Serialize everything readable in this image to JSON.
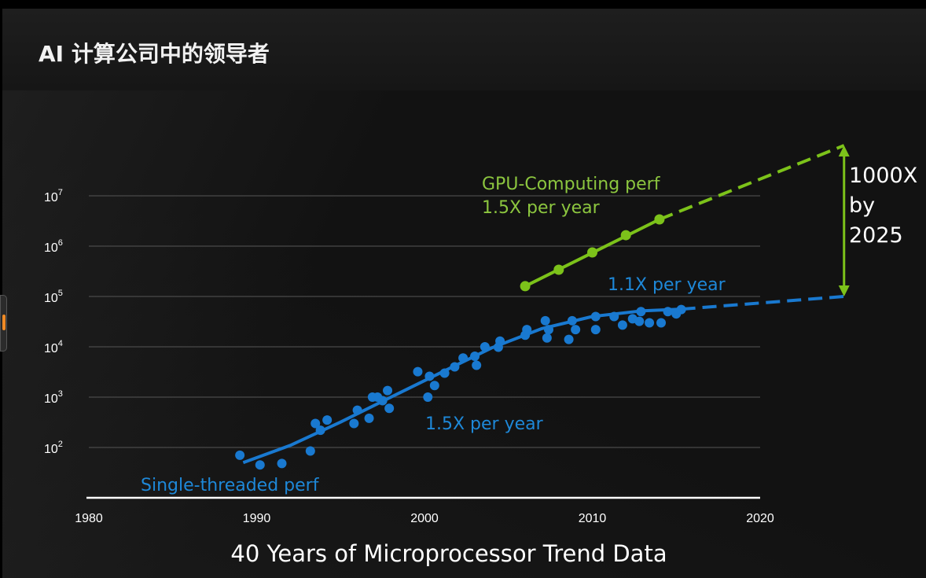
{
  "header": {
    "title": "AI 计算公司中的领导者"
  },
  "chart_data": {
    "type": "scatter",
    "title": "40 Years of Microprocessor Trend Data",
    "xlabel": "",
    "ylabel": "",
    "xlim": [
      1980,
      2020
    ],
    "ylim": [
      10,
      10000000
    ],
    "y_scale": "log",
    "grid": true,
    "x_ticks": [
      "1980",
      "1990",
      "2000",
      "2010",
      "2020"
    ],
    "y_ticks": [
      {
        "base": "10",
        "exp": "2"
      },
      {
        "base": "10",
        "exp": "3"
      },
      {
        "base": "10",
        "exp": "4"
      },
      {
        "base": "10",
        "exp": "5"
      },
      {
        "base": "10",
        "exp": "6"
      },
      {
        "base": "10",
        "exp": "7"
      }
    ],
    "colors": {
      "gpu": "#7cc21a",
      "cpu": "#1979d0",
      "axis": "#ffffff",
      "grid": "#4a4a4a"
    },
    "series": [
      {
        "name": "Single-threaded perf",
        "points": [
          [
            1989,
            70
          ],
          [
            1990.2,
            45
          ],
          [
            1991.5,
            48
          ],
          [
            1993.2,
            85
          ],
          [
            1993.5,
            300
          ],
          [
            1993.8,
            220
          ],
          [
            1994.2,
            350
          ],
          [
            1995.8,
            300
          ],
          [
            1996,
            550
          ],
          [
            1996.7,
            380
          ],
          [
            1996.9,
            1000
          ],
          [
            1997.2,
            1000
          ],
          [
            1997.5,
            850
          ],
          [
            1997.8,
            1350
          ],
          [
            1997.9,
            600
          ],
          [
            1999.6,
            3200
          ],
          [
            2000.2,
            1000
          ],
          [
            2000.3,
            2600
          ],
          [
            2000.6,
            1700
          ],
          [
            2001.2,
            3000
          ],
          [
            2001.8,
            4000
          ],
          [
            2002.3,
            6000
          ],
          [
            2003,
            6500
          ],
          [
            2003.1,
            4300
          ],
          [
            2003.6,
            10000
          ],
          [
            2004.4,
            9800
          ],
          [
            2004.5,
            13000
          ],
          [
            2006,
            17000
          ],
          [
            2006.1,
            22000
          ],
          [
            2007.2,
            33000
          ],
          [
            2007.3,
            15000
          ],
          [
            2007.4,
            22000
          ],
          [
            2008.6,
            14000
          ],
          [
            2008.8,
            33000
          ],
          [
            2009,
            22000
          ],
          [
            2010.2,
            40000
          ],
          [
            2010.2,
            22000
          ],
          [
            2011.3,
            40000
          ],
          [
            2011.8,
            27000
          ],
          [
            2012.4,
            36000
          ],
          [
            2012.8,
            32000
          ],
          [
            2012.9,
            50000
          ],
          [
            2013.4,
            30000
          ],
          [
            2014.1,
            30000
          ],
          [
            2014.5,
            50000
          ],
          [
            2015,
            45000
          ],
          [
            2015.3,
            55000
          ]
        ]
      },
      {
        "name": "GPU-Computing perf",
        "points": [
          [
            2006,
            160000
          ],
          [
            2008,
            340000
          ],
          [
            2010,
            750000
          ],
          [
            2012,
            1650000
          ],
          [
            2014,
            3400000
          ]
        ]
      }
    ],
    "trends": [
      {
        "series": "Single-threaded perf",
        "fit": [
          [
            1989.2,
            50
          ],
          [
            1992,
            110
          ],
          [
            1995,
            320
          ],
          [
            1998,
            1000
          ],
          [
            2001,
            3100
          ],
          [
            2004,
            9500
          ],
          [
            2007,
            23000
          ],
          [
            2010,
            40000
          ],
          [
            2013,
            52000
          ],
          [
            2015.3,
            56000
          ]
        ],
        "extension": [
          [
            2015.3,
            56000
          ],
          [
            2025,
            100000
          ]
        ]
      },
      {
        "series": "GPU-Computing perf",
        "fit": [
          [
            2006,
            160000
          ],
          [
            2014,
            3400000
          ]
        ],
        "extension": [
          [
            2014,
            3400000
          ],
          [
            2025,
            100000000
          ]
        ]
      }
    ],
    "annotations": [
      {
        "id": "gpu_name",
        "text": "GPU-Computing perf"
      },
      {
        "id": "gpu_rate",
        "text": "1.5X per year"
      },
      {
        "id": "cpu_late_rate",
        "text": "1.1X per year"
      },
      {
        "id": "cpu_early_rate",
        "text": "1.5X per year"
      },
      {
        "id": "cpu_name",
        "text": "Single-threaded perf"
      },
      {
        "id": "gap_line1",
        "text": "1000X"
      },
      {
        "id": "gap_line2",
        "text": "by"
      },
      {
        "id": "gap_line3",
        "text": "2025"
      }
    ]
  }
}
